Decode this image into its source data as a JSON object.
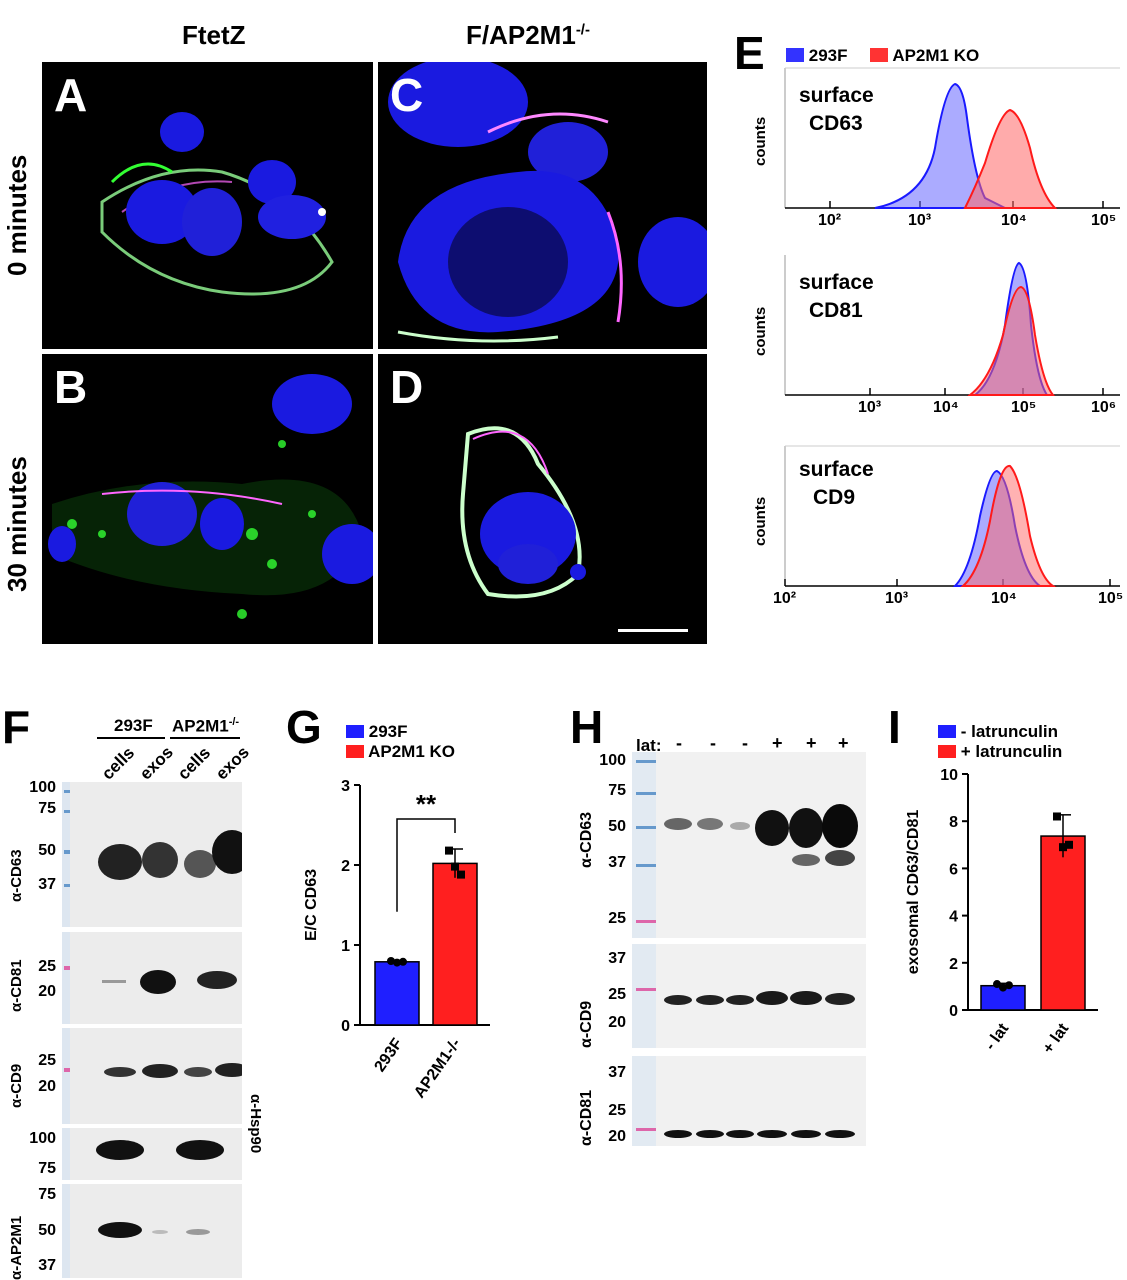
{
  "micro": {
    "col1": "FtetZ",
    "col2_main": "F/AP2M1",
    "col2_sup": "-/-",
    "row1": "0 minutes",
    "row2": "30 minutes",
    "labels": [
      "A",
      "B",
      "C",
      "D"
    ]
  },
  "panelE": {
    "letter": "E",
    "legend": [
      {
        "name": "293F",
        "color": "#3333ff"
      },
      {
        "name": "AP2M1 KO",
        "color": "#ff3333"
      }
    ],
    "ylabel": "counts",
    "hists": [
      {
        "title1": "surface",
        "title2": "CD63",
        "ticks": [
          "10²",
          "10³",
          "10⁴",
          "10⁵"
        ]
      },
      {
        "title1": "surface",
        "title2": "CD81",
        "ticks": [
          "10³",
          "10⁴",
          "10⁵",
          "10⁶"
        ]
      },
      {
        "title1": "surface",
        "title2": "CD9",
        "ticks": [
          "10²",
          "10³",
          "10⁴",
          "10⁵"
        ]
      }
    ]
  },
  "panelF": {
    "letter": "F",
    "group1": "293F",
    "group2_main": "AP2M1",
    "group2_sup": "-/-",
    "lanes": [
      "cells",
      "exos",
      "cells",
      "exos"
    ],
    "blots": [
      {
        "label": "α-CD63",
        "mw": [
          "100",
          "75",
          "50",
          "37"
        ]
      },
      {
        "label": "α-CD81",
        "mw": [
          "25",
          "20"
        ]
      },
      {
        "label": "α-CD9",
        "mw": [
          "25",
          "20"
        ]
      },
      {
        "label": "α-Hsp90",
        "mw": [
          "100",
          "75"
        ]
      },
      {
        "label": "α-AP2M1",
        "mw": [
          "75",
          "50",
          "37"
        ]
      }
    ]
  },
  "chart_data": [
    {
      "type": "bar",
      "panel": "G",
      "categories": [
        "293F",
        "AP2M1-/-"
      ],
      "values": [
        0.79,
        2.02
      ],
      "errors": [
        0.02,
        0.18
      ],
      "points": [
        [
          0.8,
          0.78,
          0.79
        ],
        [
          2.18,
          1.98,
          1.88
        ]
      ],
      "colors": [
        "#1f1fff",
        "#ff1f1f"
      ],
      "legend": [
        "293F",
        "AP2M1 KO"
      ],
      "ylabel": "E/C CD63",
      "ylim": [
        0,
        3
      ],
      "yticks": [
        "0",
        "1",
        "2",
        "3"
      ],
      "significance": "**"
    },
    {
      "type": "bar",
      "panel": "I",
      "categories": [
        "- lat",
        "+ lat"
      ],
      "values": [
        1.03,
        7.37
      ],
      "errors": [
        0.1,
        0.9
      ],
      "points": [
        [
          1.1,
          0.95,
          1.05
        ],
        [
          8.2,
          6.9,
          7.0
        ]
      ],
      "colors": [
        "#1f1fff",
        "#ff1f1f"
      ],
      "legend": [
        "- latrunculin",
        "+ latrunculin"
      ],
      "ylabel": "exosomal CD63/CD81",
      "ylim": [
        0,
        10
      ],
      "yticks": [
        "0",
        "2",
        "4",
        "6",
        "8",
        "10"
      ]
    }
  ],
  "panelH": {
    "letter": "H",
    "lat_label": "lat:",
    "lat_signs": [
      "-",
      "-",
      "-",
      "+",
      "+",
      "+"
    ],
    "blots": [
      {
        "label": "α-CD63",
        "mw": [
          "100",
          "75",
          "50",
          "37",
          "25"
        ]
      },
      {
        "label": "α-CD9",
        "mw": [
          "37",
          "25",
          "20"
        ]
      },
      {
        "label": "α-CD81",
        "mw": [
          "37",
          "25",
          "20"
        ]
      }
    ]
  },
  "panelG_letter": "G",
  "panelI_letter": "I"
}
